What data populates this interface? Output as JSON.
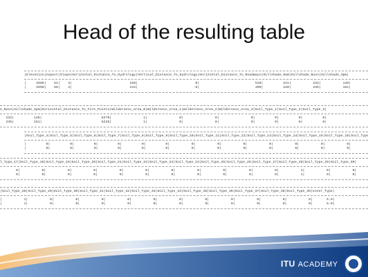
{
  "title": "Head of the resulting table",
  "blocks": [
    {
      "header": "|Elevation|Aspect|Slope|Horizontal_Distance_To_Hydrology|Vertical_Distance_To_Hydrology|Horizontal_Distance_To_Roadways|Hillshade_9am|Hillshade_Noon|Hillshade_3pm|",
      "rows": [
        "|     2596|    51|    3|                             258|                             0|                            510|          221|           232|           148|",
        "|     2590|    56|    2|                             212|                            -6|                            390|          220|           235|           151|"
      ]
    },
    {
      "header": "e_Noon|Hillshade_3pm|Horizontal_Distance_To_Fire_Points|Wilderness_Area_0|Wilderness_Area_1|Wilderness_Area_2|Wilderness_Area_3|Soil_Type_1|Soil_Type_2|Soil_Type_3|",
      "rows": [
        "   232|          148|                              6279|                1|                0|                0|                0|          0|          0|          0|",
        "   235|          151|                              6225|                1|                0|                0|                0|          0|          0|          0|"
      ]
    },
    {
      "header": "|Soil_Type_4|Soil_Type_5|Soil_Type_6|Soil_Type_7|Soil_Type_8|Soil_Type_9|Soil_Type_10|Soil_Type_11|Soil_Type_12|Soil_Type_13|Soil_Type_14|Soil_Type_15|Soil_Type_16|Soil_Type_17|",
      "rows": [
        "|          0|          0|          0|          0|          0|          0|           0|           0|           0|           0|           0|           0|           0|           0|",
        "|          0|          0|          0|          0|          0|          0|           0|           0|           0|           0|           0|           0|           0|           0|"
      ]
    },
    {
      "header": "l_Type_17|Soil_Type_18|Soil_Type_19|Soil_Type_20|Soil_Type_21|Soil_Type_22|Soil_Type_23|Soil_Type_24|Soil_Type_25|Soil_Type_26|Soil_Type_27|Soil_Type_28|Soil_Type_29|Soil_Type_30|",
      "rows": [
        "        0|           0|           0|           0|           0|           0|           0|           0|           0|           0|           0|           1|           0|           0|",
        "        0|           0|           0|           0|           0|           0|           0|           0|           0|           0|           0|           1|           0|           0|"
      ]
    },
    {
      "header": "|Soil_Type_28|Soil_Type_29|Soil_Type_30|Soil_Type_31|Soil_Type_32|Soil_Type_33|Soil_Type_34|Soil_Type_35|Soil_Type_36|Soil_Type_37|Soil_Type_38|Soil_Type_39|Cover_Type|",
      "rows": [
        "|           1|           0|           0|           0|           0|           0|           0|           0|           0|           0|           0|           0|       5.0|",
        "|           1|           0|           0|           0|           0|           0|           0|           0|           0|           0|           0|           0|       5.0|"
      ]
    }
  ],
  "footer": {
    "brand": "ITU",
    "brand_suffix": "ACADEMY"
  }
}
